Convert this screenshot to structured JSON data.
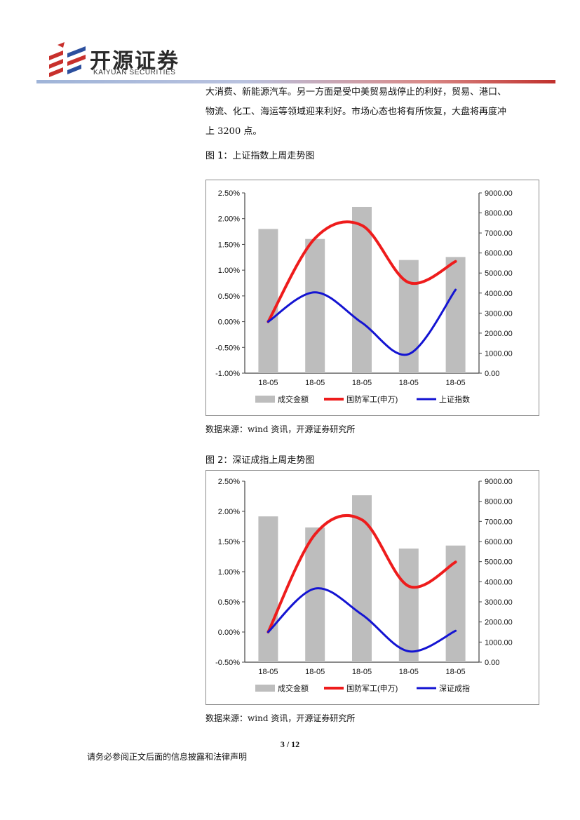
{
  "header": {
    "logo_cn": "开源证券",
    "logo_en": "KAIYUAN SECURITIES",
    "colors": {
      "red": "#c8302c",
      "blue": "#2c4f9e"
    }
  },
  "paragraph": {
    "lines": [
      "大消费、新能源汽车。另一方面是受中美贸易战停止的利好，贸易、港口、",
      "物流、化工、海运等领域迎来利好。市场心态也将有所恢复，大盘将再度冲",
      "上 3200 点。"
    ]
  },
  "figure1": {
    "title": "图 1：上证指数上周走势图",
    "source": "数据来源：wind 资讯，开源证券研究所",
    "chart_data": {
      "type": "bar+line",
      "categories": [
        "18-05",
        "18-05",
        "18-05",
        "18-05",
        "18-05"
      ],
      "y_left_ticks": [
        "-1.00%",
        "-0.50%",
        "0.00%",
        "0.50%",
        "1.00%",
        "1.50%",
        "2.00%",
        "2.50%"
      ],
      "y_left_range": [
        -1.0,
        2.5
      ],
      "y_right_ticks": [
        "0.00",
        "1000.00",
        "2000.00",
        "3000.00",
        "4000.00",
        "5000.00",
        "6000.00",
        "7000.00",
        "8000.00",
        "9000.00"
      ],
      "y_right_range": [
        0,
        9000
      ],
      "series": [
        {
          "name": "成交金额",
          "kind": "bar",
          "axis": "right",
          "color": "#bdbdbd",
          "values": [
            7200,
            6700,
            8300,
            5650,
            5800
          ]
        },
        {
          "name": "国防军工(申万)",
          "kind": "line",
          "axis": "left",
          "color": "#ee1c1c",
          "values": [
            0.0,
            1.62,
            1.87,
            0.76,
            1.17
          ]
        },
        {
          "name": "上证指数",
          "kind": "line",
          "axis": "left",
          "color": "#1414d2",
          "values": [
            0.0,
            0.57,
            -0.02,
            -0.63,
            0.62
          ]
        }
      ]
    }
  },
  "figure2": {
    "title": "图 2：深证成指上周走势图",
    "source": "数据来源：wind 资讯，开源证券研究所",
    "chart_data": {
      "type": "bar+line",
      "categories": [
        "18-05",
        "18-05",
        "18-05",
        "18-05",
        "18-05"
      ],
      "y_left_ticks": [
        "-0.50%",
        "0.00%",
        "0.50%",
        "1.00%",
        "1.50%",
        "2.00%",
        "2.50%"
      ],
      "y_left_range": [
        -0.5,
        2.5
      ],
      "y_right_ticks": [
        "0.00",
        "1000.00",
        "2000.00",
        "3000.00",
        "4000.00",
        "5000.00",
        "6000.00",
        "7000.00",
        "8000.00",
        "9000.00"
      ],
      "y_right_range": [
        0,
        9000
      ],
      "series": [
        {
          "name": "成交金额",
          "kind": "bar",
          "axis": "right",
          "color": "#bdbdbd",
          "values": [
            7250,
            6700,
            8300,
            5650,
            5800
          ]
        },
        {
          "name": "国防军工(申万)",
          "kind": "line",
          "axis": "left",
          "color": "#ee1c1c",
          "values": [
            0.0,
            1.62,
            1.86,
            0.76,
            1.16
          ]
        },
        {
          "name": "深证成指",
          "kind": "line",
          "axis": "left",
          "color": "#1414d2",
          "values": [
            0.0,
            0.72,
            0.29,
            -0.32,
            0.02
          ]
        }
      ]
    }
  },
  "page": {
    "number": "3 / 12"
  },
  "footer": {
    "text": "请务必参阅正文后面的信息披露和法律声明"
  }
}
